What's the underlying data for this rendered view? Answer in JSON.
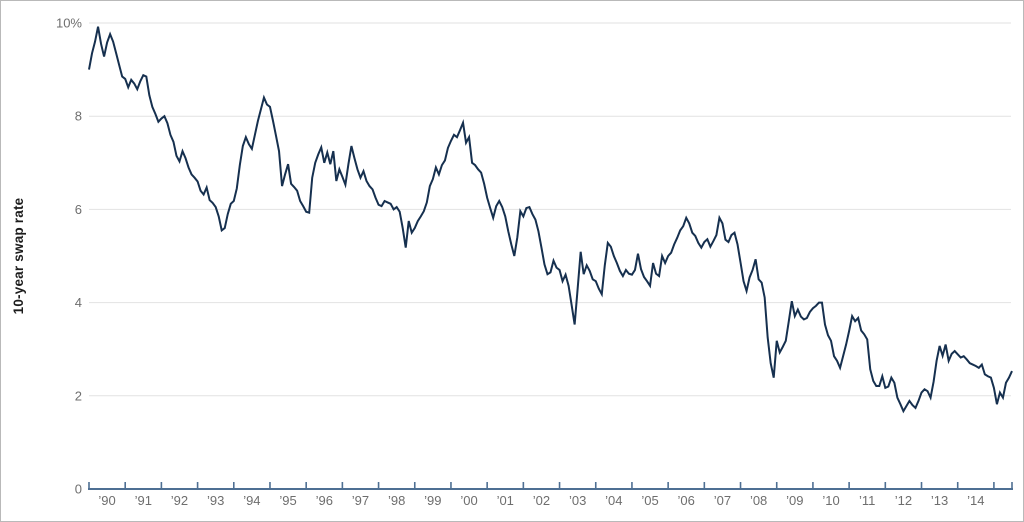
{
  "page": {
    "background": "#ffffff",
    "frame_border": "#b9b9b9"
  },
  "chart_data": {
    "type": "line",
    "title": "",
    "xlabel": "",
    "ylabel": "10-year swap rate",
    "legend_position": "none",
    "grid": "horizontal",
    "xlim": [
      1990,
      2015.5
    ],
    "ylim": [
      0,
      10
    ],
    "yticks": [
      {
        "value": 10,
        "label": "10%"
      },
      {
        "value": 8,
        "label": "8"
      },
      {
        "value": 6,
        "label": "6"
      },
      {
        "value": 4,
        "label": "4"
      },
      {
        "value": 2,
        "label": "2"
      },
      {
        "value": 0,
        "label": "0"
      }
    ],
    "xtick_positions": [
      1990,
      1991,
      1992,
      1993,
      1994,
      1995,
      1996,
      1997,
      1998,
      1999,
      2000,
      2001,
      2002,
      2003,
      2004,
      2005,
      2006,
      2007,
      2008,
      2009,
      2010,
      2011,
      2012,
      2013,
      2014,
      2015,
      2015.5
    ],
    "xtick_labels": [
      "’90",
      "’91",
      "’92",
      "’93",
      "’94",
      "’95",
      "’96",
      "’97",
      "’98",
      "’99",
      "’00",
      "’01",
      "’02",
      "’03",
      "’04",
      "’05",
      "’06",
      "’07",
      "’08",
      "’09",
      "’10",
      "’11",
      "’12",
      "’13",
      "’14"
    ],
    "colors": {
      "line": "#16304f",
      "axis": "#4e6f93",
      "grid": "#e2e2e2",
      "tick_label": "#6e6e6e",
      "axis_title": "#1c1c1c"
    },
    "series": [
      {
        "name": "10-year swap rate",
        "unit": "%",
        "frequency": "monthly",
        "x_start_year": 1990,
        "values": [
          9.0,
          9.35,
          9.6,
          9.92,
          9.55,
          9.28,
          9.58,
          9.76,
          9.6,
          9.35,
          9.1,
          8.85,
          8.8,
          8.62,
          8.78,
          8.7,
          8.58,
          8.75,
          8.88,
          8.85,
          8.45,
          8.2,
          8.05,
          7.88,
          7.95,
          8.0,
          7.85,
          7.6,
          7.45,
          7.15,
          7.03,
          7.25,
          7.1,
          6.9,
          6.75,
          6.68,
          6.6,
          6.4,
          6.32,
          6.47,
          6.2,
          6.14,
          6.05,
          5.85,
          5.55,
          5.6,
          5.9,
          6.12,
          6.18,
          6.45,
          6.95,
          7.36,
          7.55,
          7.4,
          7.3,
          7.6,
          7.9,
          8.15,
          8.4,
          8.25,
          8.2,
          7.9,
          7.58,
          7.25,
          6.5,
          6.75,
          6.97,
          6.55,
          6.48,
          6.4,
          6.18,
          6.07,
          5.95,
          5.93,
          6.68,
          7.0,
          7.18,
          7.33,
          7.0,
          7.22,
          6.97,
          7.25,
          6.61,
          6.86,
          6.7,
          6.53,
          6.97,
          7.36,
          7.1,
          6.86,
          6.68,
          6.82,
          6.61,
          6.5,
          6.43,
          6.25,
          6.1,
          6.07,
          6.18,
          6.15,
          6.12,
          6.0,
          6.05,
          5.95,
          5.6,
          5.18,
          5.75,
          5.5,
          5.6,
          5.75,
          5.85,
          5.96,
          6.15,
          6.5,
          6.65,
          6.9,
          6.75,
          6.95,
          7.05,
          7.32,
          7.47,
          7.6,
          7.55,
          7.7,
          7.86,
          7.43,
          7.55,
          7.0,
          6.95,
          6.86,
          6.79,
          6.55,
          6.25,
          6.03,
          5.82,
          6.07,
          6.18,
          6.05,
          5.85,
          5.53,
          5.25,
          5.0,
          5.4,
          5.96,
          5.85,
          6.03,
          6.05,
          5.9,
          5.78,
          5.53,
          5.18,
          4.82,
          4.61,
          4.65,
          4.9,
          4.75,
          4.7,
          4.46,
          4.6,
          4.36,
          3.95,
          3.53,
          4.3,
          5.09,
          4.61,
          4.8,
          4.68,
          4.5,
          4.46,
          4.3,
          4.18,
          4.8,
          5.28,
          5.2,
          5.0,
          4.85,
          4.68,
          4.57,
          4.7,
          4.62,
          4.6,
          4.7,
          5.05,
          4.72,
          4.55,
          4.46,
          4.36,
          4.85,
          4.62,
          4.57,
          5.0,
          4.85,
          5.0,
          5.07,
          5.25,
          5.39,
          5.55,
          5.64,
          5.82,
          5.7,
          5.5,
          5.43,
          5.28,
          5.18,
          5.3,
          5.36,
          5.2,
          5.32,
          5.45,
          5.82,
          5.7,
          5.35,
          5.3,
          5.45,
          5.5,
          5.25,
          4.86,
          4.46,
          4.25,
          4.54,
          4.7,
          4.93,
          4.5,
          4.43,
          4.11,
          3.25,
          2.7,
          2.39,
          3.18,
          2.93,
          3.05,
          3.18,
          3.6,
          4.03,
          3.71,
          3.85,
          3.7,
          3.64,
          3.67,
          3.8,
          3.88,
          3.93,
          4.0,
          4.0,
          3.53,
          3.3,
          3.18,
          2.85,
          2.75,
          2.6,
          2.85,
          3.1,
          3.39,
          3.71,
          3.6,
          3.67,
          3.4,
          3.32,
          3.21,
          2.57,
          2.32,
          2.21,
          2.21,
          2.42,
          2.17,
          2.2,
          2.39,
          2.28,
          1.96,
          1.82,
          1.67,
          1.78,
          1.89,
          1.8,
          1.74,
          1.89,
          2.07,
          2.14,
          2.1,
          1.96,
          2.3,
          2.75,
          3.07,
          2.86,
          3.1,
          2.75,
          2.9,
          2.96,
          2.89,
          2.82,
          2.85,
          2.78,
          2.7,
          2.67,
          2.64,
          2.6,
          2.67,
          2.46,
          2.42,
          2.39,
          2.17,
          1.82,
          2.07,
          1.96,
          2.28,
          2.39,
          2.53
        ]
      }
    ]
  }
}
